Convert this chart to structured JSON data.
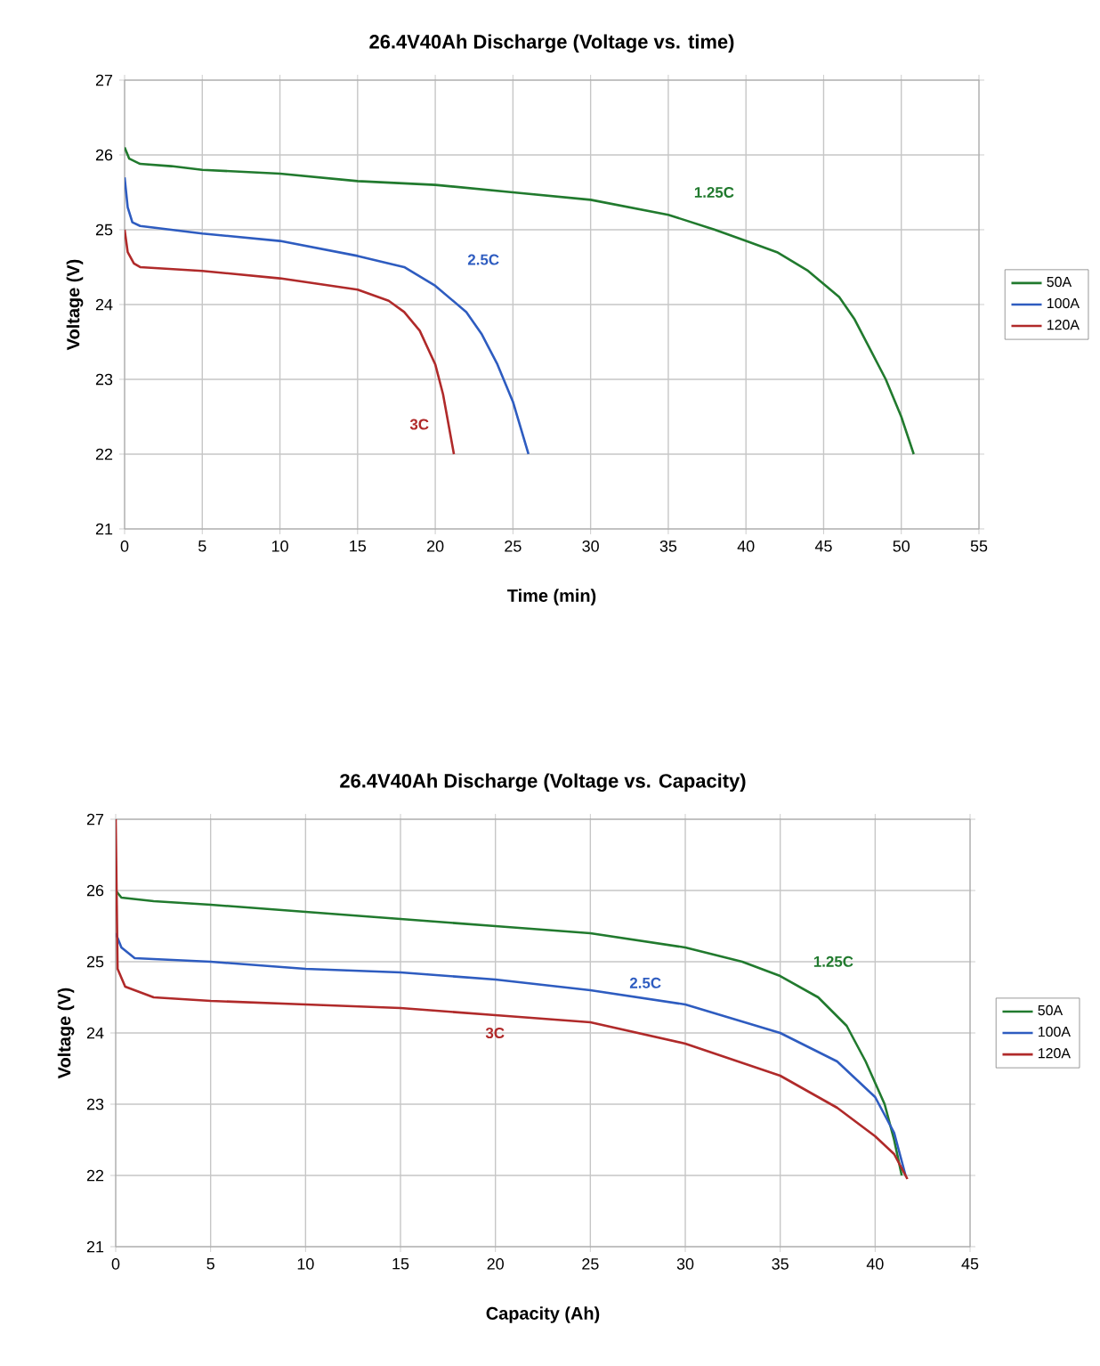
{
  "chart_data": [
    {
      "type": "line",
      "title": "26.4V40Ah Discharge (Voltage vs. time)",
      "xlabel": "Time (min)",
      "ylabel": "Voltage (V)",
      "xlim": [
        0,
        55
      ],
      "ylim": [
        21,
        27
      ],
      "xticks": [
        0,
        5,
        10,
        15,
        20,
        25,
        30,
        35,
        40,
        45,
        50,
        55
      ],
      "yticks": [
        21,
        22,
        23,
        24,
        25,
        26,
        27
      ],
      "grid": true,
      "legend": "right",
      "marker": "none",
      "line_style": "solid",
      "series": [
        {
          "name": "50A",
          "color": "#217a2e",
          "x": [
            0,
            0.3,
            1,
            3,
            5,
            10,
            15,
            20,
            25,
            30,
            35,
            38,
            40,
            42,
            44,
            46,
            47,
            48,
            49,
            50,
            50.8
          ],
          "values": [
            26.1,
            25.95,
            25.88,
            25.85,
            25.8,
            25.75,
            25.65,
            25.6,
            25.5,
            25.4,
            25.2,
            25.0,
            24.85,
            24.7,
            24.45,
            24.1,
            23.8,
            23.4,
            23.0,
            22.5,
            22.0
          ]
        },
        {
          "name": "100A",
          "color": "#2e5cc0",
          "x": [
            0,
            0.2,
            0.5,
            1,
            3,
            5,
            10,
            15,
            18,
            20,
            22,
            23,
            24,
            25,
            26
          ],
          "values": [
            25.7,
            25.3,
            25.1,
            25.05,
            25.0,
            24.95,
            24.85,
            24.65,
            24.5,
            24.25,
            23.9,
            23.6,
            23.2,
            22.7,
            22.0
          ]
        },
        {
          "name": "120A",
          "color": "#b02a2a",
          "x": [
            0,
            0.2,
            0.6,
            1,
            5,
            10,
            15,
            17,
            18,
            19,
            20,
            20.5,
            21.2
          ],
          "values": [
            25.0,
            24.7,
            24.55,
            24.5,
            24.45,
            24.35,
            24.2,
            24.05,
            23.9,
            23.65,
            23.2,
            22.8,
            22.0
          ]
        }
      ],
      "annotations": [
        "1.25C",
        "2.5C",
        "3C"
      ]
    },
    {
      "type": "line",
      "title": "26.4V40Ah Discharge (Voltage vs. Capacity)",
      "xlabel": "Capacity (Ah)",
      "ylabel": "Voltage (V)",
      "xlim": [
        0,
        45
      ],
      "ylim": [
        21,
        27
      ],
      "xticks": [
        0,
        5,
        10,
        15,
        20,
        25,
        30,
        35,
        40,
        45
      ],
      "yticks": [
        21,
        22,
        23,
        24,
        25,
        26,
        27
      ],
      "grid": true,
      "legend": "right",
      "marker": "none",
      "line_style": "solid",
      "series": [
        {
          "name": "50A",
          "color": "#217a2e",
          "x": [
            0,
            0.3,
            2,
            5,
            10,
            15,
            20,
            25,
            30,
            33,
            35,
            37,
            38.5,
            39.5,
            40.5,
            41,
            41.4
          ],
          "values": [
            26.0,
            25.9,
            25.85,
            25.8,
            25.7,
            25.6,
            25.5,
            25.4,
            25.2,
            25.0,
            24.8,
            24.5,
            24.1,
            23.6,
            23.0,
            22.5,
            22.0
          ]
        },
        {
          "name": "100A",
          "color": "#2e5cc0",
          "x": [
            0,
            0.3,
            1,
            5,
            10,
            15,
            20,
            25,
            30,
            35,
            38,
            40,
            41,
            41.6
          ],
          "values": [
            25.4,
            25.2,
            25.05,
            25.0,
            24.9,
            24.85,
            24.75,
            24.6,
            24.4,
            24.0,
            23.6,
            23.1,
            22.6,
            22.0
          ]
        },
        {
          "name": "120A",
          "color": "#b02a2a",
          "x": [
            0,
            0.1,
            0.5,
            2,
            5,
            10,
            15,
            20,
            25,
            30,
            35,
            38,
            40,
            41,
            41.7
          ],
          "values": [
            27.0,
            24.9,
            24.65,
            24.5,
            24.45,
            24.4,
            24.35,
            24.25,
            24.15,
            23.85,
            23.4,
            22.95,
            22.55,
            22.3,
            21.95
          ]
        }
      ],
      "annotations": [
        "1.25C",
        "2.5C",
        "3C"
      ]
    }
  ]
}
